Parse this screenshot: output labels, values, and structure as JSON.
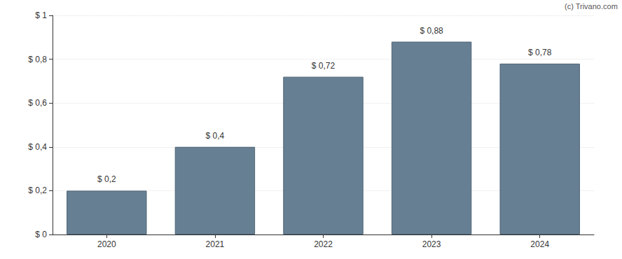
{
  "chart_data": {
    "type": "bar",
    "categories": [
      "2020",
      "2021",
      "2022",
      "2023",
      "2024"
    ],
    "values": [
      0.2,
      0.4,
      0.72,
      0.88,
      0.78
    ],
    "value_labels": [
      "$ 0,2",
      "$ 0,4",
      "$ 0,72",
      "$ 0,88",
      "$ 0,78"
    ],
    "data_labels": true,
    "color": "#667f93",
    "ylim": [
      0,
      1
    ],
    "yticks": [
      {
        "value": 0,
        "label": "$ 0"
      },
      {
        "value": 0.2,
        "label": "$ 0,2"
      },
      {
        "value": 0.4,
        "label": "$ 0,4"
      },
      {
        "value": 0.6,
        "label": "$ 0,6"
      },
      {
        "value": 0.8,
        "label": "$ 0,8"
      },
      {
        "value": 1,
        "label": "$ 1"
      }
    ],
    "grid": true,
    "annotations": [
      "(c) Trivano.com"
    ]
  }
}
